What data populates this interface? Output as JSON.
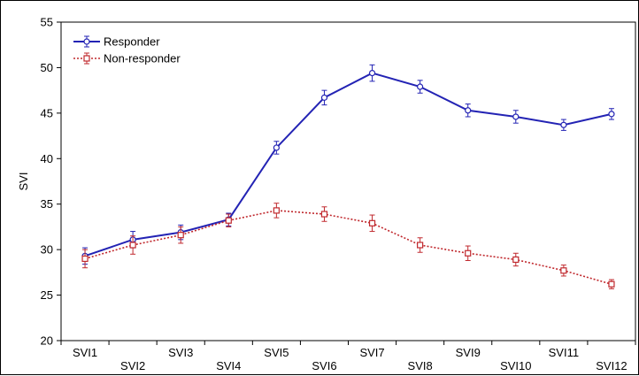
{
  "chart_data": {
    "type": "line",
    "title": "",
    "xlabel": "",
    "ylabel": "SVI",
    "ylim": [
      20,
      55
    ],
    "yticks": [
      20,
      25,
      30,
      35,
      40,
      45,
      50,
      55
    ],
    "categories": [
      "SVI1",
      "SVI2",
      "SVI3",
      "SVI4",
      "SVI5",
      "SVI6",
      "SVI7",
      "SVI8",
      "SVI9",
      "SVI10",
      "SVI11",
      "SVI12"
    ],
    "legend_position": "top-left",
    "grid": false,
    "series": [
      {
        "name": "Responder",
        "color": "#2323b4",
        "line_style": "solid",
        "marker": "circle",
        "values": [
          29.3,
          31.1,
          31.9,
          33.3,
          41.2,
          46.7,
          49.4,
          47.9,
          45.3,
          44.6,
          43.7,
          44.9
        ],
        "error": [
          0.9,
          0.9,
          0.8,
          0.7,
          0.7,
          0.8,
          0.9,
          0.7,
          0.7,
          0.7,
          0.6,
          0.6
        ]
      },
      {
        "name": "Non-responder",
        "color": "#c0282d",
        "line_style": "dotted",
        "marker": "square",
        "values": [
          29.0,
          30.5,
          31.6,
          33.2,
          34.3,
          33.9,
          32.9,
          30.5,
          29.6,
          28.9,
          27.7,
          26.2
        ],
        "error": [
          1.0,
          1.0,
          0.9,
          0.7,
          0.8,
          0.8,
          0.9,
          0.8,
          0.8,
          0.7,
          0.6,
          0.5
        ]
      }
    ]
  }
}
